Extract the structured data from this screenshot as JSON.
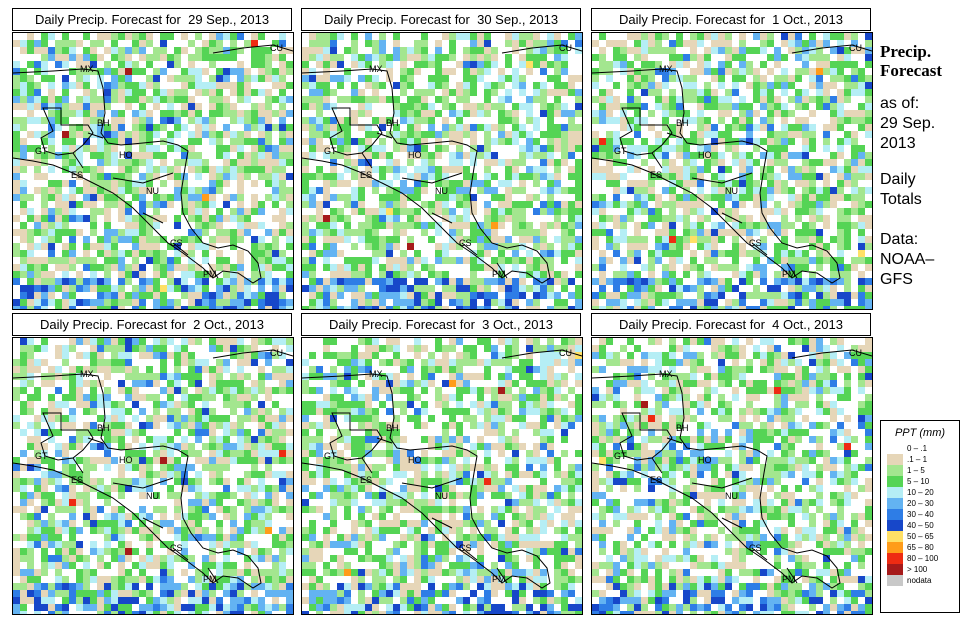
{
  "panels": [
    {
      "title": "Daily Precip. Forecast for  29 Sep., 2013",
      "seed": 11
    },
    {
      "title": "Daily Precip. Forecast for  30 Sep., 2013",
      "seed": 23
    },
    {
      "title": "Daily Precip. Forecast for  1 Oct., 2013",
      "seed": 37
    },
    {
      "title": "Daily Precip. Forecast for  2 Oct., 2013",
      "seed": 41
    },
    {
      "title": "Daily Precip. Forecast for  3 Oct., 2013",
      "seed": 53
    },
    {
      "title": "Daily Precip. Forecast for  4 Oct., 2013",
      "seed": 67
    }
  ],
  "country_labels": [
    "CU",
    "MX",
    "BH",
    "GT",
    "HO",
    "ES",
    "NU",
    "CS",
    "PM"
  ],
  "sidebar": {
    "title_line1": "Precip.",
    "title_line2": "Forecast",
    "asof_line1": "as of:",
    "asof_line2": "29 Sep.",
    "asof_line3": "2013",
    "totals_line1": "Daily",
    "totals_line2": "Totals",
    "data_line1": "Data:",
    "data_line2": "NOAA–",
    "data_line3": "GFS"
  },
  "legend": {
    "title": "PPT (mm)",
    "items": [
      {
        "label": "0 – .1",
        "color": "#ffffff"
      },
      {
        "label": ".1 – 1",
        "color": "#e6d6b8"
      },
      {
        "label": "1 – 5",
        "color": "#a3e68f"
      },
      {
        "label": "5 – 10",
        "color": "#55d455"
      },
      {
        "label": "10 – 20",
        "color": "#b5eef5"
      },
      {
        "label": "20 – 30",
        "color": "#63b3f2"
      },
      {
        "label": "30 – 40",
        "color": "#2e7de6"
      },
      {
        "label": "40 – 50",
        "color": "#1747c9"
      },
      {
        "label": "50 – 65",
        "color": "#ffe066"
      },
      {
        "label": "65 – 80",
        "color": "#ff9c1a"
      },
      {
        "label": "80 – 100",
        "color": "#ee2b12"
      },
      {
        "label": "> 100",
        "color": "#a61a1a"
      },
      {
        "label": "nodata",
        "color": "#c8c8c8"
      }
    ]
  }
}
